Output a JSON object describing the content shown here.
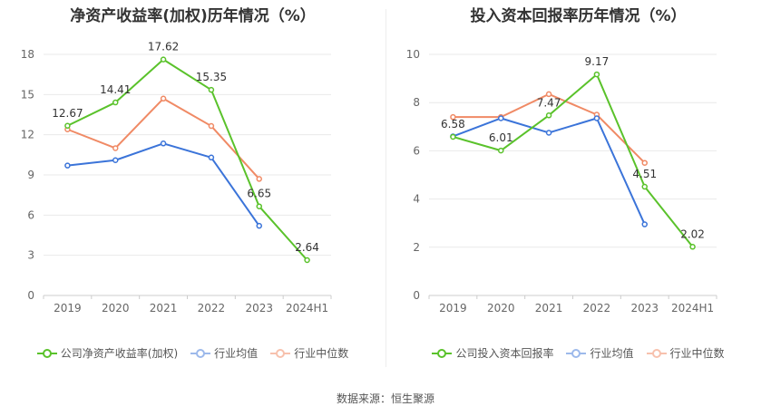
{
  "source_text": "数据来源：恒生聚源",
  "chart_data": [
    {
      "type": "line",
      "title": "净资产收益率(加权)历年情况（%）",
      "categories": [
        "2019",
        "2020",
        "2021",
        "2022",
        "2023",
        "2024H1"
      ],
      "ylim": [
        0,
        18
      ],
      "yticks": [
        0,
        3,
        6,
        9,
        12,
        15,
        18
      ],
      "grid": true,
      "legend_position": "bottom",
      "series": [
        {
          "name": "公司净资产收益率(加权)",
          "color": "#5ac22b",
          "values": [
            12.67,
            14.41,
            17.62,
            15.35,
            6.65,
            2.64
          ],
          "labels": [
            "12.67",
            "14.41",
            "17.62",
            "15.35",
            "6.65",
            "2.64"
          ]
        },
        {
          "name": "行业均值",
          "color": "#3b74d9",
          "values": [
            9.7,
            10.1,
            11.35,
            10.3,
            5.2,
            null
          ]
        },
        {
          "name": "行业中位数",
          "color": "#f08a65",
          "values": [
            12.4,
            11.0,
            14.7,
            12.65,
            8.7,
            null
          ]
        }
      ]
    },
    {
      "type": "line",
      "title": "投入资本回报率历年情况（%）",
      "categories": [
        "2019",
        "2020",
        "2021",
        "2022",
        "2023",
        "2024H1"
      ],
      "ylim": [
        0,
        10
      ],
      "yticks": [
        0,
        2,
        4,
        6,
        8,
        10
      ],
      "grid": true,
      "legend_position": "bottom",
      "series": [
        {
          "name": "公司投入资本回报率",
          "color": "#5ac22b",
          "values": [
            6.58,
            6.01,
            7.47,
            9.17,
            4.51,
            2.02
          ],
          "labels": [
            "6.58",
            "6.01",
            "7.47",
            "9.17",
            "4.51",
            "2.02"
          ]
        },
        {
          "name": "行业均值",
          "color": "#3b74d9",
          "values": [
            6.6,
            7.35,
            6.75,
            7.35,
            2.95,
            null
          ]
        },
        {
          "name": "行业中位数",
          "color": "#f08a65",
          "values": [
            7.4,
            7.4,
            8.35,
            7.5,
            5.5,
            null
          ]
        }
      ]
    }
  ]
}
